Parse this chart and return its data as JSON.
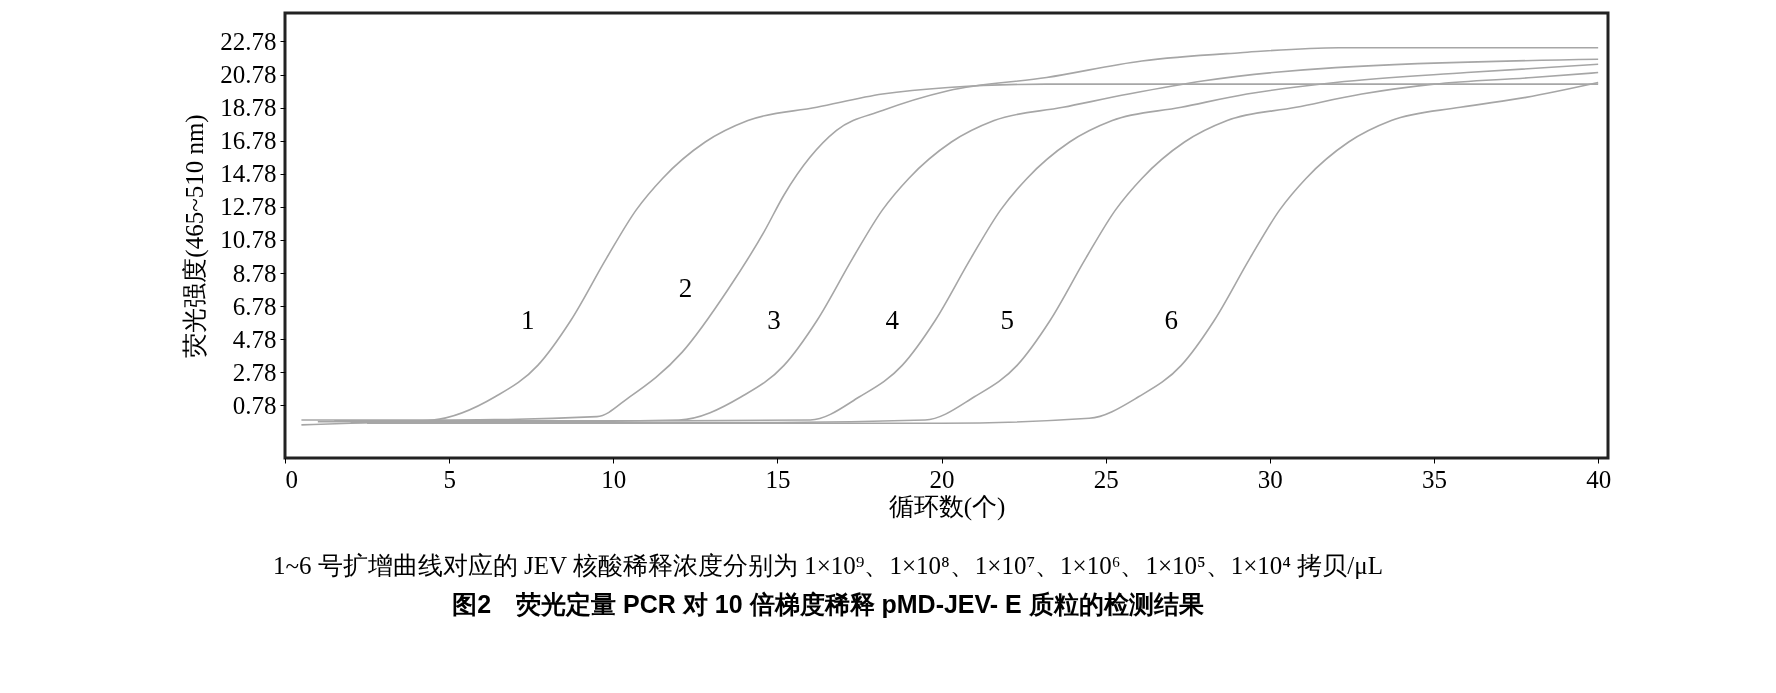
{
  "chart_data": {
    "type": "line",
    "title": "图2　荧光定量 PCR 对 10 倍梯度稀释 pMD-JEV- E 质粒的检测结果",
    "xlabel": "循环数(个)",
    "ylabel": "荧光强度(465~510 nm)",
    "xlim": [
      0,
      40.3
    ],
    "xticks": [
      0,
      5,
      10,
      15,
      20,
      25,
      30,
      35,
      40
    ],
    "ylim": [
      -2.4,
      24.5
    ],
    "yticks": [
      0.78,
      2.78,
      4.78,
      6.78,
      8.78,
      10.78,
      12.78,
      14.78,
      16.78,
      18.78,
      20.78,
      22.78
    ],
    "grid": false,
    "marker": "none",
    "line_style": "solid",
    "series": [
      {
        "name": "1",
        "color": "#a6a6a6",
        "x": [
          0.5,
          2,
          4.5,
          6.4,
          7.7,
          8.7,
          9.8,
          10.7,
          11.5,
          12.8,
          14.1,
          16.2,
          18.2,
          20.2,
          23.2,
          40
        ],
        "values": [
          -0.4,
          -0.3,
          -0.1,
          1.3,
          3.2,
          5.9,
          9.7,
          12.6,
          14.5,
          16.7,
          18.0,
          18.8,
          19.6,
          20.0,
          20.2,
          20.2
        ]
      },
      {
        "name": "2",
        "color": "#a6a6a6",
        "x": [
          0.5,
          5,
          9.5,
          10.5,
          12.1,
          13.5,
          14.6,
          15.2,
          16.8,
          18.2,
          20.2,
          23.2,
          26.1,
          29.1,
          32.1,
          40
        ],
        "values": [
          -0.1,
          -0.1,
          0.1,
          1.3,
          4.0,
          7.8,
          11.3,
          13.5,
          17.4,
          18.6,
          19.8,
          20.6,
          21.6,
          22.1,
          22.4,
          22.4
        ]
      },
      {
        "name": "3",
        "color": "#a6a6a6",
        "x": [
          1,
          8,
          12,
          13.9,
          15.2,
          16.2,
          17.3,
          18.2,
          19.0,
          20.3,
          21.6,
          23.7,
          25.7,
          28,
          32,
          40
        ],
        "values": [
          -0.2,
          -0.2,
          -0.1,
          1.3,
          3.2,
          5.9,
          9.7,
          12.6,
          14.5,
          16.7,
          18.0,
          18.8,
          19.6,
          20.4,
          21.2,
          21.7
        ]
      },
      {
        "name": "4",
        "color": "#a6a6a6",
        "x": [
          1.5,
          12,
          16,
          17.5,
          18.8,
          19.8,
          20.9,
          21.8,
          22.6,
          23.9,
          25.2,
          27.3,
          29.3,
          32,
          36,
          40
        ],
        "values": [
          -0.15,
          -0.15,
          -0.1,
          1.3,
          3.2,
          5.9,
          9.7,
          12.6,
          14.5,
          16.7,
          18.0,
          18.8,
          19.6,
          20.3,
          20.9,
          21.4
        ]
      },
      {
        "name": "5",
        "color": "#a6a6a6",
        "x": [
          2,
          15,
          19.5,
          21,
          22.3,
          23.3,
          24.4,
          25.3,
          26.1,
          27.4,
          28.7,
          30.8,
          32.8,
          35,
          38,
          40
        ],
        "values": [
          -0.25,
          -0.25,
          -0.1,
          1.3,
          3.2,
          5.9,
          9.7,
          12.6,
          14.5,
          16.7,
          18.0,
          18.8,
          19.6,
          20.2,
          20.6,
          20.9
        ]
      },
      {
        "name": "6",
        "color": "#a6a6a6",
        "x": [
          2.5,
          20,
          24.5,
          26,
          27.3,
          28.3,
          29.4,
          30.3,
          31.1,
          32.4,
          33.7,
          35.8,
          37.8,
          40
        ],
        "values": [
          -0.3,
          -0.3,
          0,
          1.3,
          3.2,
          5.9,
          9.7,
          12.6,
          14.5,
          16.7,
          18.0,
          18.8,
          19.4,
          20.3
        ]
      }
    ],
    "annotations": [
      "1~6 号扩增曲线对应的 JEV 核酸稀释浓度分别为 1×10⁹、1×10⁸、1×10⁷、1×10⁶、1×10⁵、1×10⁴ 拷贝/μL"
    ]
  }
}
